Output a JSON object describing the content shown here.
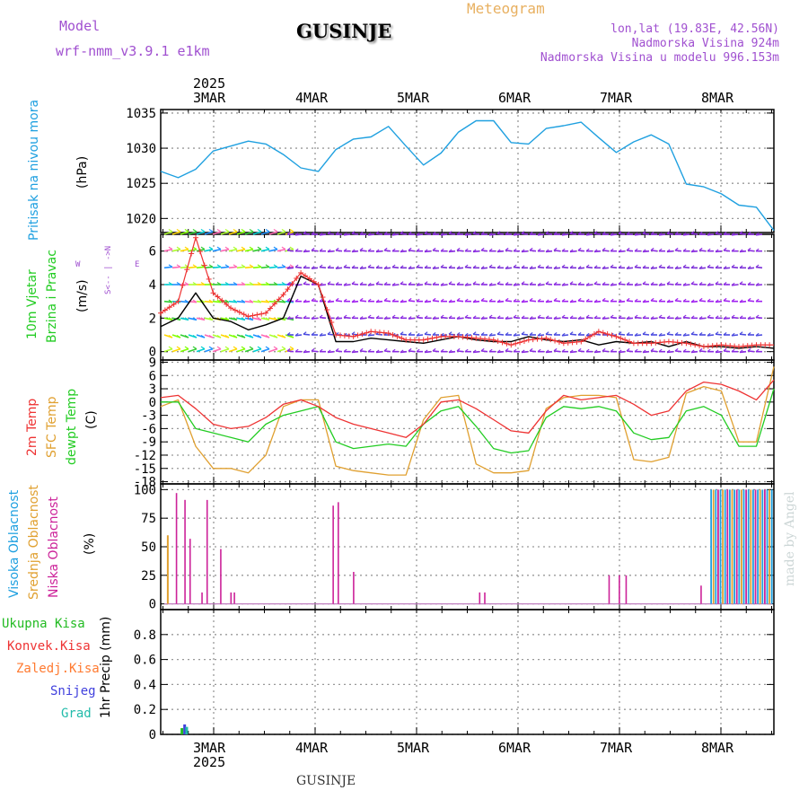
{
  "header": {
    "model_label": "Model",
    "model_name": "wrf-nmm_v3.9.1  e1km",
    "station": "GUSINJE",
    "title": "Meteogram",
    "lonlat": "lon,lat (19.83E, 42.56N)",
    "elevation": "Nadmorska Visina 924m",
    "model_elevation": "Nadmorska Visina u modelu 996.153m"
  },
  "footer": {
    "station": "GUSINJE",
    "credit": "made by Angel"
  },
  "colors": {
    "pressure": "#1fa0e0",
    "temp2m": "#ee3333",
    "sfc": "#e0a030",
    "dew": "#22cc22",
    "wind_black": "#000000",
    "gust": "#ee3333",
    "cloud_high": "#1fa0e0",
    "cloud_mid": "#e0a030",
    "cloud_low": "#cc2299",
    "precip_total": "#22bb22",
    "precip_conv": "#ee3333",
    "precip_frz": "#ff7a30",
    "precip_snow": "#4040dd",
    "precip_grad": "#22bbaa",
    "purple": "#a050d0",
    "header_orange": "#e8b060"
  },
  "chart_data": [
    {
      "type": "line",
      "panel": "pressure",
      "x_start": "2025-03-02 14:00",
      "x_end": "2025-03-08 14:00",
      "xtick_labels_top": [
        "3MAR",
        "4MAR",
        "5MAR",
        "6MAR",
        "7MAR",
        "8MAR"
      ],
      "year_label": "2025",
      "ylabel": "(hPa)",
      "side_labels": [
        "Pritisak na nivou mora"
      ],
      "yticks": [
        1020,
        1025,
        1030,
        1035
      ],
      "ylim": [
        1018.0,
        1035.5
      ],
      "series": [
        {
          "values": [
            1026.7,
            1025.8,
            1027.0,
            1029.6,
            1030.3,
            1031.0,
            1030.6,
            1029.1,
            1027.2,
            1026.7,
            1029.8,
            1031.3,
            1031.6,
            1033.1,
            1030.3,
            1027.6,
            1029.3,
            1032.3,
            1033.9,
            1033.9,
            1030.8,
            1030.6,
            1032.8,
            1033.2,
            1033.7,
            1031.5,
            1029.4,
            1030.9,
            1031.9,
            1030.6,
            1024.9,
            1024.5,
            1023.5,
            1021.9,
            1021.6,
            1018.3
          ]
        }
      ]
    },
    {
      "type": "line",
      "panel": "wind",
      "x_start": "2025-03-02 14:00",
      "x_end": "2025-03-08 14:00",
      "ylabel": "(m/s)",
      "side_labels": [
        "10m Vjetar",
        "Brzina i Pravac"
      ],
      "compass_labels": [
        "N",
        "W",
        "E",
        "S",
        "<--",
        "->"
      ],
      "yticks": [
        0,
        2,
        4,
        6
      ],
      "ylim": [
        -0.5,
        7.0
      ],
      "arrow_rows": [
        0,
        1,
        2,
        3,
        4,
        5,
        6,
        7
      ],
      "series": [
        {
          "name": "",
          "values": [
            1.5,
            2.0,
            3.5,
            2.0,
            1.8,
            1.3,
            1.6,
            2.0,
            4.5,
            4.0,
            0.6,
            0.6,
            0.8,
            0.7,
            0.6,
            0.5,
            0.7,
            0.9,
            0.7,
            0.6,
            0.6,
            0.9,
            0.7,
            0.6,
            0.7,
            0.4,
            0.6,
            0.5,
            0.6,
            0.3,
            0.6,
            0.3,
            0.3,
            0.2,
            0.3,
            0.2
          ]
        },
        {
          "name": "",
          "values": [
            2.3,
            3.0,
            6.8,
            3.5,
            2.6,
            2.1,
            2.3,
            3.4,
            4.7,
            4.0,
            1.0,
            0.9,
            1.2,
            1.1,
            0.7,
            0.7,
            0.9,
            0.9,
            0.8,
            0.7,
            0.4,
            0.7,
            0.8,
            0.5,
            0.6,
            1.2,
            0.9,
            0.5,
            0.5,
            0.6,
            0.5,
            0.3,
            0.4,
            0.3,
            0.4,
            0.4
          ]
        }
      ]
    },
    {
      "type": "line",
      "panel": "temperature",
      "x_start": "2025-03-02 14:00",
      "x_end": "2025-03-08 14:00",
      "ylabel": "(C)",
      "side_labels": [
        "2m Temp",
        "SFC Temp",
        "dewpt Temp"
      ],
      "yticks": [
        -18,
        -15,
        -12,
        -9,
        -6,
        -3,
        0,
        3,
        6,
        9
      ],
      "ylim": [
        -18.5,
        9.5
      ],
      "series": [
        {
          "values": [
            1.0,
            1.5,
            -1.5,
            -5.0,
            -6.0,
            -5.5,
            -3.5,
            -0.5,
            0.5,
            -1.0,
            -3.5,
            -5.0,
            -6.0,
            -7.0,
            -8.0,
            -5.0,
            0.0,
            0.5,
            -1.5,
            -4.0,
            -6.5,
            -7.0,
            -2.0,
            1.5,
            0.5,
            1.0,
            1.5,
            -0.5,
            -3.0,
            -2.0,
            2.5,
            4.5,
            4.0,
            2.5,
            0.5,
            5.0
          ]
        },
        {
          "values": [
            -1.0,
            0.5,
            -10.0,
            -15.0,
            -15.0,
            -16.0,
            -12.0,
            -1.0,
            0.5,
            0.5,
            -14.5,
            -15.5,
            -16.0,
            -16.5,
            -16.5,
            -4.0,
            1.0,
            1.5,
            -14.0,
            -16.0,
            -16.0,
            -15.5,
            -1.5,
            1.0,
            1.5,
            1.5,
            1.0,
            -13.0,
            -13.5,
            -12.5,
            2.0,
            3.5,
            2.5,
            -9.0,
            -9.0,
            8.0
          ]
        },
        {
          "values": [
            0.0,
            0.0,
            -6.0,
            -7.0,
            -8.0,
            -9.0,
            -5.0,
            -3.0,
            -2.0,
            -1.0,
            -9.0,
            -10.5,
            -10.0,
            -9.5,
            -10.0,
            -5.0,
            -2.0,
            -1.0,
            -5.5,
            -10.5,
            -11.5,
            -11.0,
            -3.5,
            -1.0,
            -1.5,
            -1.0,
            -2.0,
            -7.0,
            -8.5,
            -8.0,
            -2.0,
            -1.0,
            -3.0,
            -10.0,
            -10.0,
            3.0
          ]
        }
      ]
    },
    {
      "type": "bar",
      "panel": "clouds",
      "x_start": "2025-03-02 14:00",
      "x_end": "2025-03-08 14:00",
      "ylabel": "(%)",
      "side_labels": [
        "Visoka Oblacnost",
        "Srednja Oblacnost",
        "Niska Oblacnost"
      ],
      "yticks": [
        0,
        25,
        50,
        75,
        100
      ],
      "ylim": [
        -5,
        105
      ],
      "low_cloud_bars": [
        {
          "t": 0.2,
          "v": 97
        },
        {
          "t": 0.45,
          "v": 91
        },
        {
          "t": 0.6,
          "v": 57
        },
        {
          "t": 0.95,
          "v": 10
        },
        {
          "t": 1.1,
          "v": 91
        },
        {
          "t": 1.5,
          "v": 48
        },
        {
          "t": 1.8,
          "v": 10
        },
        {
          "t": 1.9,
          "v": 10
        },
        {
          "t": 4.8,
          "v": 86
        },
        {
          "t": 4.95,
          "v": 89
        },
        {
          "t": 5.4,
          "v": 28
        },
        {
          "t": 9.1,
          "v": 10
        },
        {
          "t": 9.25,
          "v": 10
        },
        {
          "t": 12.9,
          "v": 25
        },
        {
          "t": 13.2,
          "v": 25
        },
        {
          "t": 13.4,
          "v": 25
        },
        {
          "t": 15.6,
          "v": 16
        }
      ],
      "mid_cloud_bars": [
        {
          "t": 0.05,
          "v": 60
        }
      ],
      "high_cloud_block": {
        "t_start": 16.0,
        "t_end": 18.0,
        "v": 100
      }
    },
    {
      "type": "bar",
      "panel": "precip",
      "x_start": "2025-03-02 14:00",
      "x_end": "2025-03-08 14:00",
      "ylabel": "1hr Precip (mm)",
      "side_labels": [
        "Ukupna Kisa",
        "Konvek.Kisa",
        "Zaledj.Kisa",
        "Snijeg",
        "Grad"
      ],
      "yticks": [
        0,
        0.2,
        0.4,
        0.6,
        0.8
      ],
      "ylim": [
        0,
        1.0
      ],
      "xtick_labels_bottom": [
        "3MAR",
        "4MAR",
        "5MAR",
        "6MAR",
        "7MAR",
        "8MAR"
      ],
      "year_label_bottom": "2025",
      "bars": [
        {
          "t": 0.32,
          "v": 0.05,
          "kind": "total"
        },
        {
          "t": 0.4,
          "v": 0.08,
          "kind": "snow"
        },
        {
          "t": 0.46,
          "v": 0.06,
          "kind": "grad"
        }
      ]
    }
  ]
}
